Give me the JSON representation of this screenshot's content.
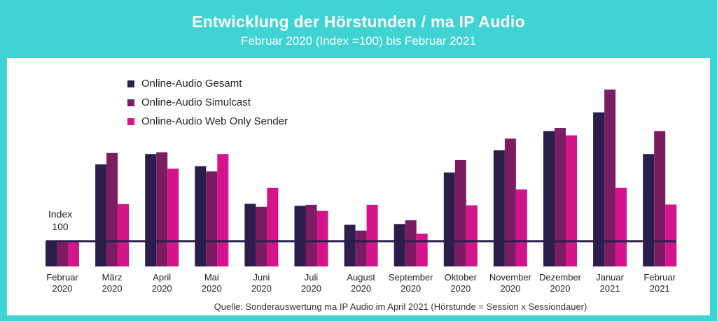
{
  "header": {
    "title": "Entwicklung der Hörstunden / ma IP Audio",
    "subtitle": "Februar 2020 (Index =100) bis Februar 2021"
  },
  "source": "Quelle: Sonderauswertung ma IP Audio im April 2021 (Hörstunde = Session x Sessiondauer)",
  "index_label": [
    "Index",
    "100"
  ],
  "colors": {
    "background": "#40d3d3",
    "gesamt": "#2b1e4d",
    "simulcast": "#7a1d63",
    "webonly": "#d4148a",
    "baseline": "#2b1e4d"
  },
  "chart_data": {
    "type": "bar",
    "title": "Entwicklung der Hörstunden / ma IP Audio",
    "subtitle": "Februar 2020 (Index =100) bis Februar 2021",
    "categories": [
      [
        "Februar",
        "2020"
      ],
      [
        "März",
        "2020"
      ],
      [
        "April",
        "2020"
      ],
      [
        "Mai",
        "2020"
      ],
      [
        "Juni",
        "2020"
      ],
      [
        "Juli",
        "2020"
      ],
      [
        "August",
        "2020"
      ],
      [
        "September",
        "2020"
      ],
      [
        "Oktober",
        "2020"
      ],
      [
        "November",
        "2020"
      ],
      [
        "Dezember",
        "2020"
      ],
      [
        "Januar",
        "2021"
      ],
      [
        "Februar",
        "2021"
      ]
    ],
    "series": [
      {
        "name": "Online-Audio Gesamt",
        "color": "#2b1e4d",
        "values": [
          100,
          404,
          445,
          397,
          248,
          240,
          165,
          168,
          372,
          460,
          536,
          610,
          445
        ]
      },
      {
        "name": "Online-Audio Simulcast",
        "color": "#7a1d63",
        "values": [
          100,
          449,
          452,
          376,
          236,
          244,
          142,
          183,
          421,
          506,
          548,
          700,
          536
        ]
      },
      {
        "name": "Online-Audio Web Only Sender",
        "color": "#d4148a",
        "values": [
          100,
          247,
          387,
          445,
          311,
          220,
          244,
          130,
          242,
          305,
          519,
          311,
          245
        ]
      }
    ],
    "baseline": 100,
    "ylim": [
      0,
      800
    ],
    "legend_position": "top-left",
    "grid": false,
    "xlabel": "",
    "ylabel": ""
  }
}
